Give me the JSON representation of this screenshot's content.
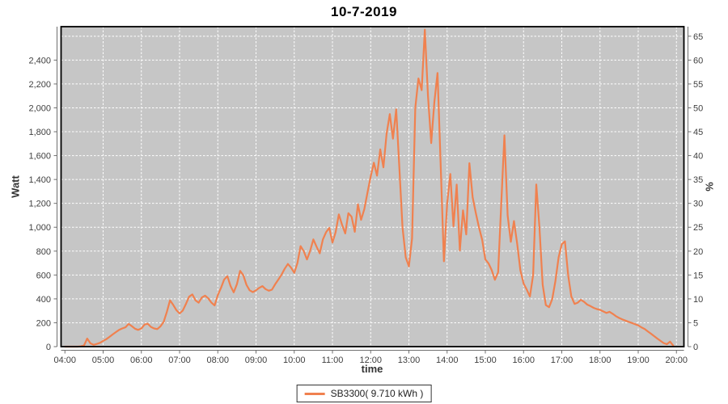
{
  "colors": {
    "series_orange": "#F0814F",
    "plot_background": "#C6C6C6",
    "gridline": "#FFFFFF",
    "plot_border": "#000000",
    "axis_line": "#6E6E6E",
    "tick_text": "#3F3F3F",
    "axis_label_text": "#333333",
    "page_background": "#FFFFFF"
  },
  "chart_data": {
    "type": "line",
    "title": "10-7-2019",
    "xlabel": "time",
    "ylabel_left": "Watt",
    "ylabel_right": "%",
    "grid": "white dashed gridlines on gray plot background, hourly vertical / 200 W horizontal",
    "x_ticks": [
      "04:00",
      "05:00",
      "06:00",
      "07:00",
      "08:00",
      "09:00",
      "10:00",
      "11:00",
      "12:00",
      "13:00",
      "14:00",
      "15:00",
      "16:00",
      "17:00",
      "18:00",
      "19:00",
      "20:00"
    ],
    "y_left": {
      "min": 0,
      "max": 2680,
      "tick_step": 200
    },
    "y_right": {
      "min": 0,
      "max": 67,
      "tick_step": 5
    },
    "legend": {
      "position": "bottom-center",
      "entries": [
        {
          "label": "SB3300( 9.710 kWh )",
          "color": "#F0814F"
        }
      ]
    },
    "series": [
      {
        "name": "SB3300( 9.710 kWh )",
        "unit": "W",
        "points": [
          [
            "04:00",
            0
          ],
          [
            "04:05",
            0
          ],
          [
            "04:10",
            0
          ],
          [
            "04:15",
            0
          ],
          [
            "04:20",
            0
          ],
          [
            "04:25",
            3
          ],
          [
            "04:30",
            10
          ],
          [
            "04:35",
            68
          ],
          [
            "04:40",
            28
          ],
          [
            "04:45",
            15
          ],
          [
            "04:50",
            22
          ],
          [
            "04:55",
            32
          ],
          [
            "05:00",
            48
          ],
          [
            "05:05",
            62
          ],
          [
            "05:10",
            82
          ],
          [
            "05:15",
            102
          ],
          [
            "05:20",
            122
          ],
          [
            "05:25",
            140
          ],
          [
            "05:30",
            152
          ],
          [
            "05:35",
            162
          ],
          [
            "05:40",
            190
          ],
          [
            "05:45",
            172
          ],
          [
            "05:50",
            150
          ],
          [
            "05:55",
            140
          ],
          [
            "06:00",
            152
          ],
          [
            "06:05",
            185
          ],
          [
            "06:10",
            192
          ],
          [
            "06:15",
            165
          ],
          [
            "06:20",
            152
          ],
          [
            "06:25",
            147
          ],
          [
            "06:30",
            170
          ],
          [
            "06:35",
            207
          ],
          [
            "06:40",
            292
          ],
          [
            "06:45",
            388
          ],
          [
            "06:50",
            350
          ],
          [
            "06:55",
            305
          ],
          [
            "07:00",
            278
          ],
          [
            "07:05",
            302
          ],
          [
            "07:10",
            358
          ],
          [
            "07:15",
            418
          ],
          [
            "07:20",
            437
          ],
          [
            "07:25",
            388
          ],
          [
            "07:30",
            368
          ],
          [
            "07:35",
            412
          ],
          [
            "07:40",
            427
          ],
          [
            "07:45",
            405
          ],
          [
            "07:50",
            368
          ],
          [
            "07:55",
            345
          ],
          [
            "08:00",
            432
          ],
          [
            "08:05",
            492
          ],
          [
            "08:10",
            562
          ],
          [
            "08:15",
            590
          ],
          [
            "08:20",
            508
          ],
          [
            "08:25",
            455
          ],
          [
            "08:30",
            523
          ],
          [
            "08:35",
            635
          ],
          [
            "08:40",
            598
          ],
          [
            "08:45",
            518
          ],
          [
            "08:50",
            472
          ],
          [
            "08:55",
            457
          ],
          [
            "09:00",
            472
          ],
          [
            "09:05",
            492
          ],
          [
            "09:10",
            507
          ],
          [
            "09:15",
            482
          ],
          [
            "09:20",
            468
          ],
          [
            "09:25",
            477
          ],
          [
            "09:30",
            522
          ],
          [
            "09:35",
            562
          ],
          [
            "09:40",
            602
          ],
          [
            "09:45",
            652
          ],
          [
            "09:50",
            692
          ],
          [
            "09:55",
            662
          ],
          [
            "10:00",
            618
          ],
          [
            "10:05",
            700
          ],
          [
            "10:10",
            842
          ],
          [
            "10:15",
            798
          ],
          [
            "10:20",
            730
          ],
          [
            "10:25",
            802
          ],
          [
            "10:30",
            898
          ],
          [
            "10:35",
            838
          ],
          [
            "10:40",
            782
          ],
          [
            "10:45",
            898
          ],
          [
            "10:50",
            958
          ],
          [
            "10:55",
            995
          ],
          [
            "11:00",
            872
          ],
          [
            "11:05",
            958
          ],
          [
            "11:10",
            1108
          ],
          [
            "11:15",
            1022
          ],
          [
            "11:20",
            948
          ],
          [
            "11:25",
            1118
          ],
          [
            "11:30",
            1088
          ],
          [
            "11:35",
            962
          ],
          [
            "11:40",
            1192
          ],
          [
            "11:45",
            1062
          ],
          [
            "11:50",
            1152
          ],
          [
            "11:55",
            1290
          ],
          [
            "12:00",
            1425
          ],
          [
            "12:05",
            1540
          ],
          [
            "12:10",
            1432
          ],
          [
            "12:15",
            1652
          ],
          [
            "12:20",
            1502
          ],
          [
            "12:25",
            1782
          ],
          [
            "12:30",
            1948
          ],
          [
            "12:35",
            1742
          ],
          [
            "12:40",
            1988
          ],
          [
            "12:45",
            1500
          ],
          [
            "12:50",
            1000
          ],
          [
            "12:55",
            748
          ],
          [
            "13:00",
            672
          ],
          [
            "13:05",
            905
          ],
          [
            "13:10",
            2000
          ],
          [
            "13:15",
            2246
          ],
          [
            "13:20",
            2148
          ],
          [
            "13:25",
            2655
          ],
          [
            "13:30",
            2100
          ],
          [
            "13:35",
            1705
          ],
          [
            "13:40",
            2050
          ],
          [
            "13:45",
            2292
          ],
          [
            "13:50",
            1500
          ],
          [
            "13:55",
            715
          ],
          [
            "14:00",
            1200
          ],
          [
            "14:05",
            1446
          ],
          [
            "14:10",
            1008
          ],
          [
            "14:15",
            1357
          ],
          [
            "14:20",
            805
          ],
          [
            "14:25",
            1142
          ],
          [
            "14:30",
            940
          ],
          [
            "14:35",
            1536
          ],
          [
            "14:40",
            1252
          ],
          [
            "14:45",
            1120
          ],
          [
            "14:50",
            1000
          ],
          [
            "14:55",
            895
          ],
          [
            "15:00",
            730
          ],
          [
            "15:05",
            698
          ],
          [
            "15:10",
            640
          ],
          [
            "15:15",
            560
          ],
          [
            "15:20",
            622
          ],
          [
            "15:25",
            1200
          ],
          [
            "15:30",
            1770
          ],
          [
            "15:35",
            1098
          ],
          [
            "15:40",
            878
          ],
          [
            "15:45",
            1052
          ],
          [
            "15:50",
            860
          ],
          [
            "15:55",
            640
          ],
          [
            "16:00",
            528
          ],
          [
            "16:05",
            478
          ],
          [
            "16:10",
            420
          ],
          [
            "16:15",
            600
          ],
          [
            "16:20",
            1358
          ],
          [
            "16:25",
            998
          ],
          [
            "16:30",
            518
          ],
          [
            "16:35",
            348
          ],
          [
            "16:40",
            330
          ],
          [
            "16:45",
            398
          ],
          [
            "16:50",
            548
          ],
          [
            "16:55",
            748
          ],
          [
            "17:00",
            858
          ],
          [
            "17:05",
            882
          ],
          [
            "17:10",
            598
          ],
          [
            "17:15",
            420
          ],
          [
            "17:20",
            358
          ],
          [
            "17:25",
            368
          ],
          [
            "17:30",
            392
          ],
          [
            "17:35",
            375
          ],
          [
            "17:40",
            352
          ],
          [
            "17:45",
            340
          ],
          [
            "17:50",
            325
          ],
          [
            "17:55",
            315
          ],
          [
            "18:00",
            308
          ],
          [
            "18:05",
            295
          ],
          [
            "18:10",
            282
          ],
          [
            "18:15",
            292
          ],
          [
            "18:20",
            275
          ],
          [
            "18:25",
            255
          ],
          [
            "18:30",
            240
          ],
          [
            "18:35",
            228
          ],
          [
            "18:40",
            218
          ],
          [
            "18:45",
            208
          ],
          [
            "18:50",
            198
          ],
          [
            "18:55",
            188
          ],
          [
            "19:00",
            178
          ],
          [
            "19:05",
            162
          ],
          [
            "19:10",
            148
          ],
          [
            "19:15",
            128
          ],
          [
            "19:20",
            108
          ],
          [
            "19:25",
            88
          ],
          [
            "19:30",
            68
          ],
          [
            "19:35",
            48
          ],
          [
            "19:40",
            30
          ],
          [
            "19:45",
            20
          ],
          [
            "19:50",
            42
          ],
          [
            "19:55",
            8
          ]
        ]
      }
    ]
  }
}
